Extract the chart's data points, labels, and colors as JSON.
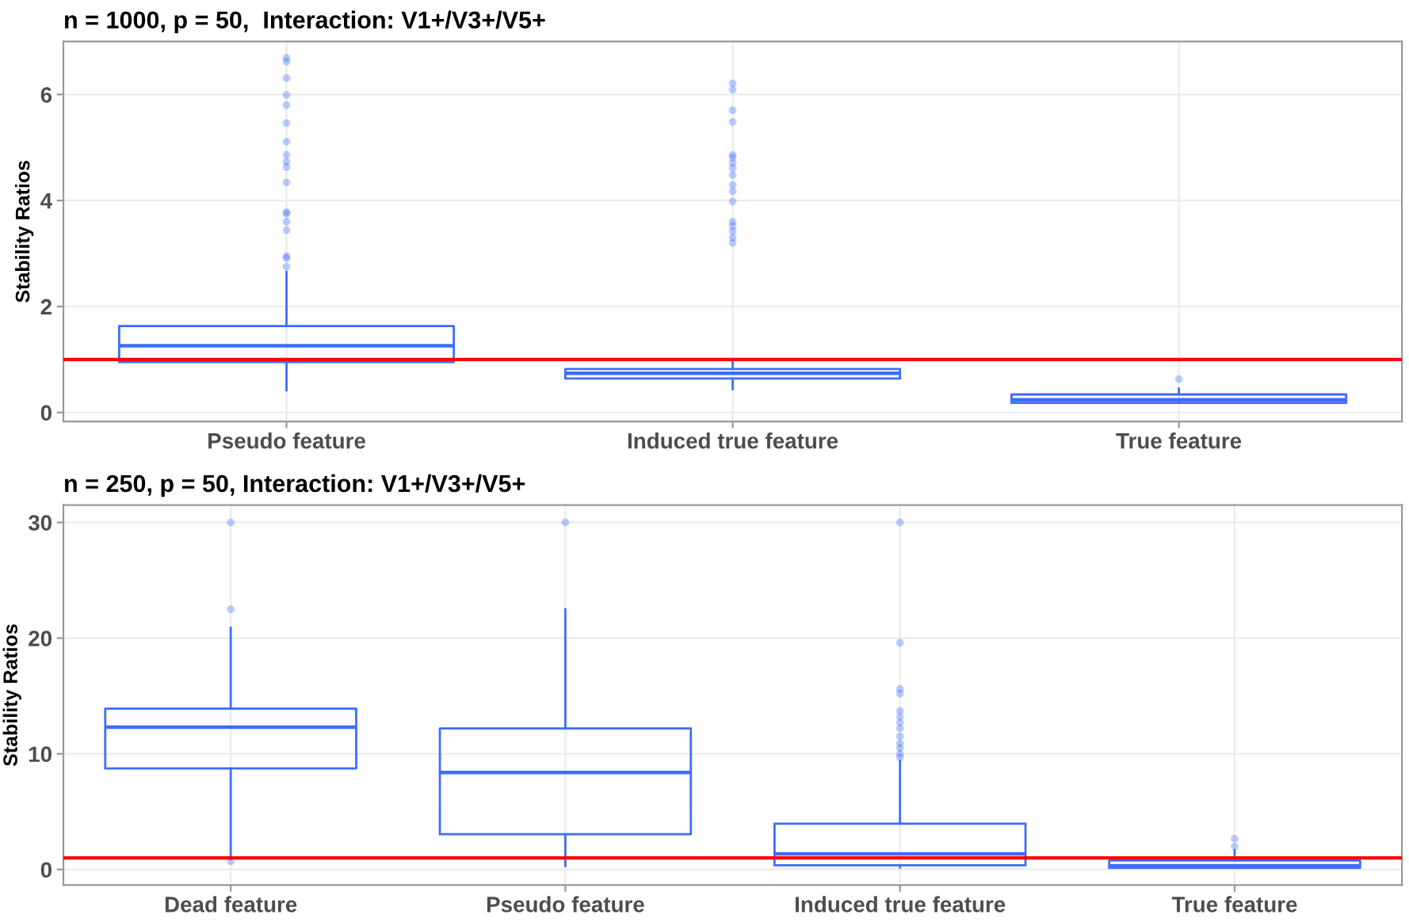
{
  "chart_data": [
    {
      "type": "box",
      "title": "n = 1000, p = 50,  Interaction: V1+/V3+/V5+",
      "ylabel": "Stability Ratios",
      "categories": [
        "Pseudo feature",
        "Induced true feature",
        "True feature"
      ],
      "color": "#3d6cff",
      "ylim": [
        -0.17,
        7.0
      ],
      "yticks": [
        0,
        2,
        4,
        6
      ],
      "grid": true,
      "ref_lines": [
        {
          "axis": "y",
          "value": 1,
          "color": "#ff0000"
        }
      ],
      "boxes": [
        {
          "low": 0.42,
          "q1": 0.95,
          "median": 1.26,
          "q3": 1.63,
          "high": 2.65,
          "outliers": [
            6.69,
            6.62,
            6.31,
            5.99,
            5.8,
            5.46,
            5.11,
            4.86,
            4.73,
            4.63,
            4.34,
            3.78,
            3.75,
            3.6,
            3.44,
            2.95,
            2.91,
            2.75
          ]
        },
        {
          "low": 0.44,
          "q1": 0.64,
          "median": 0.74,
          "q3": 0.82,
          "high": 1.0,
          "outliers": [
            6.21,
            6.09,
            5.7,
            5.48,
            4.86,
            4.81,
            4.71,
            4.61,
            4.48,
            4.29,
            4.17,
            3.98,
            3.6,
            3.52,
            3.42,
            3.3,
            3.2
          ]
        },
        {
          "low": 0.18,
          "q1": 0.18,
          "median": 0.24,
          "q3": 0.34,
          "high": 0.45,
          "outliers": [
            0.63
          ]
        }
      ]
    },
    {
      "type": "box",
      "title": "n = 250, p = 50, Interaction: V1+/V3+/V5+",
      "ylabel": "Stability Ratios",
      "categories": [
        "Dead feature",
        "Pseudo feature",
        "Induced true feature",
        "True feature"
      ],
      "color": "#3d6cff",
      "ylim": [
        -1.35,
        31.5
      ],
      "yticks": [
        0,
        10,
        20,
        30
      ],
      "grid": true,
      "ref_lines": [
        {
          "axis": "y",
          "value": 1,
          "color": "#ff0000"
        }
      ],
      "boxes": [
        {
          "low": 0.9,
          "q1": 8.74,
          "median": 12.3,
          "q3": 13.9,
          "high": 20.9,
          "outliers": [
            30.0,
            22.5,
            0.7
          ]
        },
        {
          "low": 0.3,
          "q1": 3.06,
          "median": 8.38,
          "q3": 12.2,
          "high": 22.5,
          "outliers": [
            30.0
          ]
        },
        {
          "low": 0.18,
          "q1": 0.36,
          "median": 1.35,
          "q3": 3.96,
          "high": 9.4,
          "outliers": [
            30.0,
            19.6,
            15.6,
            15.2,
            13.7,
            13.2,
            12.7,
            12.2,
            11.5,
            10.9,
            10.5,
            10.0,
            9.7
          ]
        },
        {
          "low": 0.14,
          "q1": 0.14,
          "median": 0.32,
          "q3": 0.77,
          "high": 1.67,
          "outliers": [
            2.66,
            1.98
          ]
        }
      ]
    }
  ]
}
